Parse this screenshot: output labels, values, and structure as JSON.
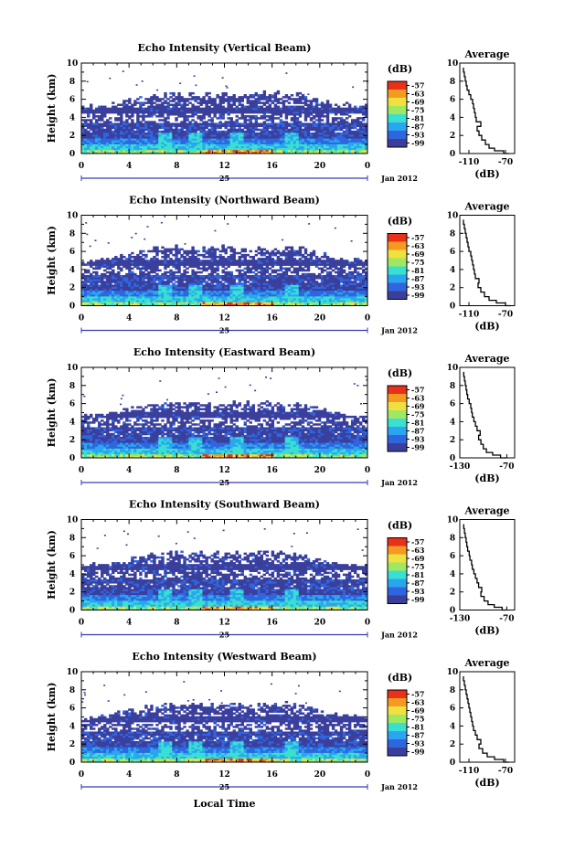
{
  "figure": {
    "x_axis_label": "Local Time",
    "date_day": "25",
    "date_label": "Jan 2012",
    "colorbar_unit": "(dB)",
    "colorbar_ticks": [
      "-57",
      "-63",
      "-69",
      "-75",
      "-81",
      "-87",
      "-93",
      "-99"
    ],
    "colorbar_colors": [
      "#3b3f9c",
      "#2f66e0",
      "#2aa6f0",
      "#39e0d0",
      "#9fe860",
      "#f0e040",
      "#f59a20",
      "#e8301a"
    ],
    "avg_title": "Average",
    "avg_unit": "(dB)"
  },
  "chart_data": [
    {
      "type": "heatmap",
      "title": "Echo Intensity (Vertical Beam)",
      "xlabel": "",
      "ylabel": "Height (km)",
      "xlim": [
        0,
        24
      ],
      "ylim": [
        0,
        10
      ],
      "x_ticks": [
        "0",
        "4",
        "8",
        "12",
        "16",
        "20",
        "0"
      ],
      "y_ticks": [
        "0",
        "2",
        "4",
        "6",
        "8",
        "10"
      ],
      "echo_top_km": 6.5,
      "avg_profile": {
        "xlim": [
          -120,
          -60
        ],
        "x_ticks": [
          "-110",
          "-70"
        ],
        "y_ticks": [
          "0",
          "2",
          "4",
          "6",
          "8",
          "10"
        ],
        "height_km": [
          0,
          0.3,
          0.6,
          1,
          1.5,
          2,
          2.5,
          3,
          3.5,
          4,
          4.5,
          5,
          5.5,
          6,
          6.5,
          7,
          7.5,
          8,
          8.5,
          9,
          9.5
        ],
        "intensity_db": [
          -66,
          -72,
          -82,
          -88,
          -92,
          -96,
          -99,
          -101,
          -97,
          -102,
          -103,
          -104,
          -105,
          -106,
          -108,
          -110,
          -112,
          -113,
          -114,
          -115,
          -116
        ]
      }
    },
    {
      "type": "heatmap",
      "title": "Echo Intensity (Northward Beam)",
      "xlabel": "",
      "ylabel": "Height (km)",
      "xlim": [
        0,
        24
      ],
      "ylim": [
        0,
        10
      ],
      "x_ticks": [
        "0",
        "4",
        "8",
        "12",
        "16",
        "20",
        "0"
      ],
      "y_ticks": [
        "0",
        "2",
        "4",
        "6",
        "8",
        "10"
      ],
      "echo_top_km": 6.3,
      "avg_profile": {
        "xlim": [
          -120,
          -60
        ],
        "x_ticks": [
          "-110",
          "-70"
        ],
        "y_ticks": [
          "0",
          "2",
          "4",
          "6",
          "8",
          "10"
        ],
        "height_km": [
          0,
          0.3,
          0.6,
          1,
          1.5,
          2,
          2.5,
          3,
          3.5,
          4,
          4.5,
          5,
          5.5,
          6,
          6.5,
          7,
          7.5,
          8,
          8.5,
          9,
          9.5
        ],
        "intensity_db": [
          -64,
          -70,
          -80,
          -88,
          -93,
          -97,
          -100,
          -99,
          -103,
          -104,
          -105,
          -106,
          -107,
          -108,
          -110,
          -111,
          -112,
          -113,
          -114,
          -115,
          -116
        ]
      }
    },
    {
      "type": "heatmap",
      "title": "Echo Intensity (Eastward Beam)",
      "xlabel": "",
      "ylabel": "Height (km)",
      "xlim": [
        0,
        24
      ],
      "ylim": [
        0,
        10
      ],
      "x_ticks": [
        "0",
        "4",
        "8",
        "12",
        "16",
        "20",
        "0"
      ],
      "y_ticks": [
        "0",
        "2",
        "4",
        "6",
        "8",
        "10"
      ],
      "echo_top_km": 6.0,
      "avg_profile": {
        "xlim": [
          -130,
          -60
        ],
        "x_ticks": [
          "-130",
          "-70"
        ],
        "y_ticks": [
          "0",
          "2",
          "4",
          "6",
          "8",
          "10"
        ],
        "height_km": [
          0,
          0.3,
          0.6,
          1,
          1.5,
          2,
          2.5,
          3,
          3.5,
          4,
          4.5,
          5,
          5.5,
          6,
          6.5,
          7,
          7.5,
          8,
          8.5,
          9,
          9.5
        ],
        "intensity_db": [
          -70,
          -78,
          -88,
          -96,
          -100,
          -103,
          -106,
          -104,
          -108,
          -110,
          -112,
          -114,
          -115,
          -116,
          -118,
          -120,
          -121,
          -122,
          -123,
          -124,
          -125
        ]
      }
    },
    {
      "type": "heatmap",
      "title": "Echo Intensity (Southward Beam)",
      "xlabel": "",
      "ylabel": "Height (km)",
      "xlim": [
        0,
        24
      ],
      "ylim": [
        0,
        10
      ],
      "x_ticks": [
        "0",
        "4",
        "8",
        "12",
        "16",
        "20",
        "0"
      ],
      "y_ticks": [
        "0",
        "2",
        "4",
        "6",
        "8",
        "10"
      ],
      "echo_top_km": 6.2,
      "avg_profile": {
        "xlim": [
          -130,
          -60
        ],
        "x_ticks": [
          "-130",
          "-70"
        ],
        "y_ticks": [
          "0",
          "2",
          "4",
          "6",
          "8",
          "10"
        ],
        "height_km": [
          0,
          0.3,
          0.6,
          1,
          1.5,
          2,
          2.5,
          3,
          3.5,
          4,
          4.5,
          5,
          5.5,
          6,
          6.5,
          7,
          7.5,
          8,
          8.5,
          9,
          9.5
        ],
        "intensity_db": [
          -70,
          -76,
          -86,
          -94,
          -99,
          -103,
          -102,
          -106,
          -108,
          -110,
          -112,
          -114,
          -115,
          -117,
          -118,
          -120,
          -121,
          -122,
          -123,
          -124,
          -125
        ]
      }
    },
    {
      "type": "heatmap",
      "title": "Echo Intensity (Westward Beam)",
      "xlabel": "",
      "ylabel": "Height (km)",
      "xlim": [
        0,
        24
      ],
      "ylim": [
        0,
        10
      ],
      "x_ticks": [
        "0",
        "4",
        "8",
        "12",
        "16",
        "20",
        "0"
      ],
      "y_ticks": [
        "0",
        "2",
        "4",
        "6",
        "8",
        "10"
      ],
      "echo_top_km": 6.3,
      "avg_profile": {
        "xlim": [
          -120,
          -60
        ],
        "x_ticks": [
          "-110",
          "-70"
        ],
        "y_ticks": [
          "0",
          "2",
          "4",
          "6",
          "8",
          "10"
        ],
        "height_km": [
          0,
          0.3,
          0.6,
          1,
          1.5,
          2,
          2.5,
          3,
          3.5,
          4,
          4.5,
          5,
          5.5,
          6,
          6.5,
          7,
          7.5,
          8,
          8.5,
          9,
          9.5
        ],
        "intensity_db": [
          -66,
          -72,
          -82,
          -90,
          -95,
          -99,
          -97,
          -101,
          -103,
          -105,
          -106,
          -107,
          -108,
          -109,
          -110,
          -111,
          -112,
          -113,
          -114,
          -115,
          -116
        ]
      }
    }
  ]
}
